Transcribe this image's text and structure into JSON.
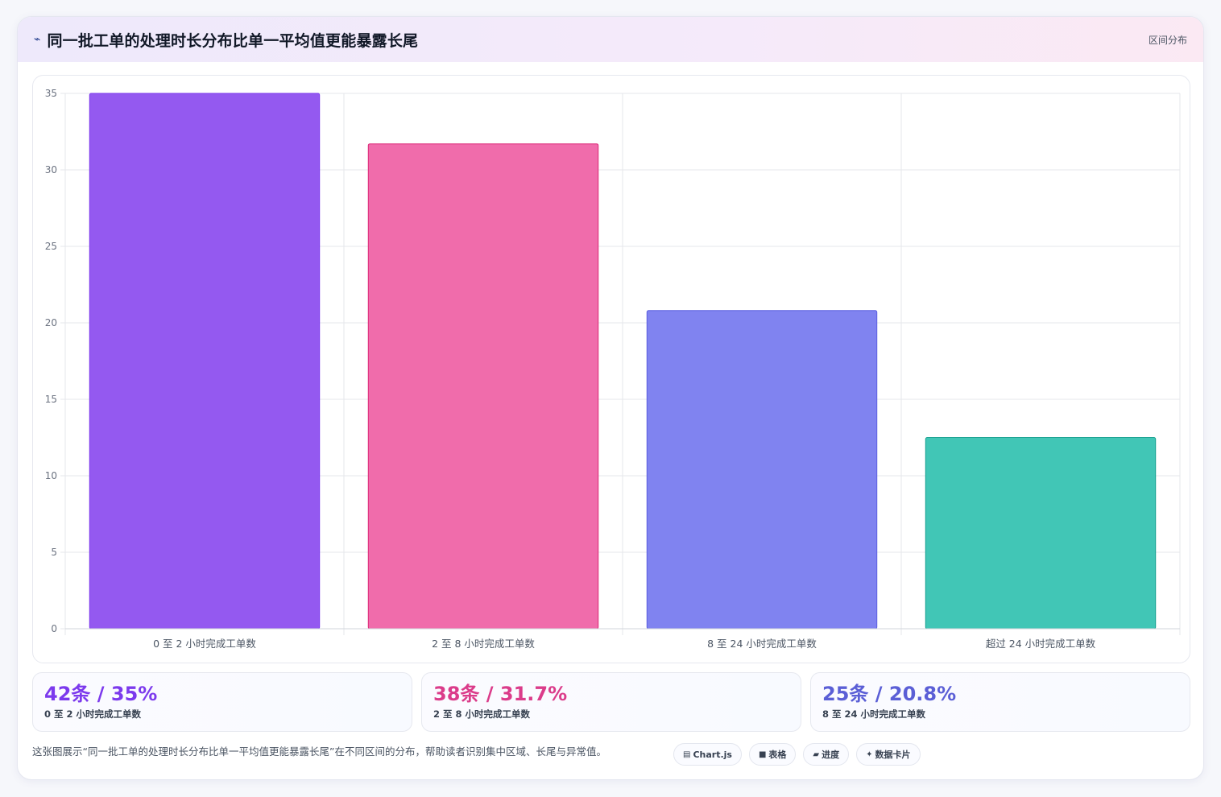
{
  "header": {
    "icon": "chart-line-icon",
    "title": "同一批工单的处理时长分布比单一平均值更能暴露长尾",
    "badge": "区间分布"
  },
  "chart_data": {
    "type": "bar",
    "title": "",
    "xlabel": "",
    "ylabel": "",
    "categories": [
      "0 至 2 小时完成工单数",
      "2 至 8 小时完成工单数",
      "8 至 24 小时完成工单数",
      "超过 24 小时完成工单数"
    ],
    "values": [
      35,
      31.7,
      20.8,
      12.5
    ],
    "ylim": [
      0,
      35
    ],
    "yticks": [
      0,
      5,
      10,
      15,
      20,
      25,
      30,
      35
    ],
    "grid": true,
    "legend": "none",
    "colors": [
      "#9459f0",
      "#f06cab",
      "#8083f0",
      "#41c6b6"
    ],
    "border_colors": [
      "#7c3aed",
      "#db2777",
      "#5b5fe0",
      "#14a08f"
    ]
  },
  "stats": [
    {
      "value": "42条 / 35%",
      "label": "0 至 2 小时完成工单数",
      "color": "#7c3aed"
    },
    {
      "value": "38条 / 31.7%",
      "label": "2 至 8 小时完成工单数",
      "color": "#db3c8a"
    },
    {
      "value": "25条 / 20.8%",
      "label": "8 至 24 小时完成工单数",
      "color": "#5b5fd6"
    }
  ],
  "footer": {
    "description": "这张图展示“同一批工单的处理时长分布比单一平均值更能暴露长尾”在不同区间的分布，帮助读者识别集中区域、长尾与异常值。"
  },
  "chips": [
    {
      "icon": "chart-icon",
      "glyph": "▤",
      "label": "Chart.js"
    },
    {
      "icon": "table-icon",
      "glyph": "■",
      "label": "表格"
    },
    {
      "icon": "progress-icon",
      "glyph": "▰",
      "label": "进度"
    },
    {
      "icon": "sparkle-icon",
      "glyph": "✦",
      "label": "数据卡片"
    }
  ]
}
